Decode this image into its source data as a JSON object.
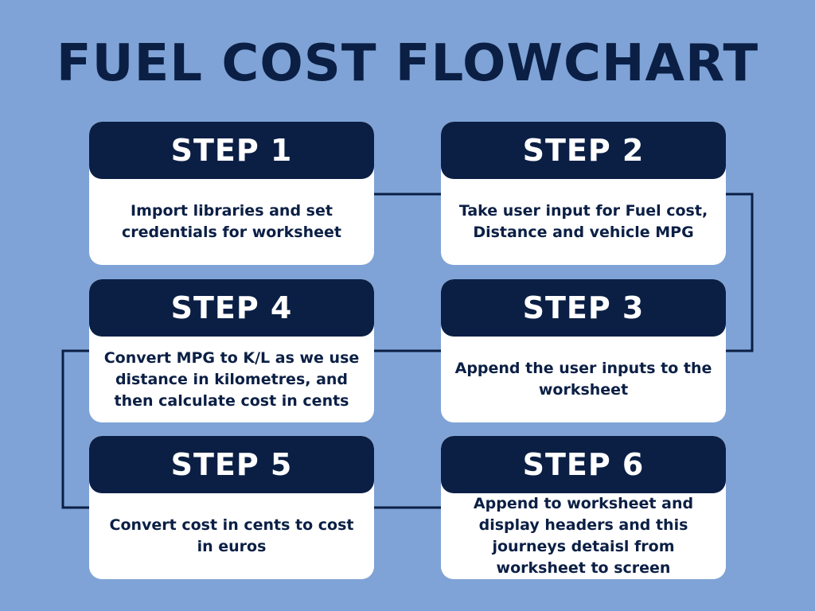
{
  "title": "FUEL COST FLOWCHART",
  "steps": [
    {
      "label": "STEP 1",
      "text": "Import libraries and set credentials for worksheet"
    },
    {
      "label": "STEP 2",
      "text": "Take user input for Fuel cost, Distance and vehicle MPG"
    },
    {
      "label": "STEP 3",
      "text": "Append the user inputs to the worksheet"
    },
    {
      "label": "STEP 4",
      "text": "Convert MPG to K/L as we use distance in kilometres, and then calculate cost in cents"
    },
    {
      "label": "STEP 5",
      "text": "Convert cost in cents to cost in euros"
    },
    {
      "label": "STEP 6",
      "text": "Append to worksheet and display headers and this journeys detaisl from worksheet to screen"
    }
  ],
  "colors": {
    "background": "#7fa3d6",
    "header": "#0b1f45",
    "card": "#ffffff",
    "connector": "#0b1f45"
  }
}
